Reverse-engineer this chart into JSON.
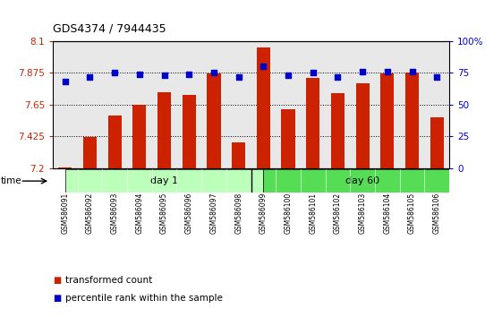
{
  "title": "GDS4374 / 7944435",
  "samples": [
    "GSM586091",
    "GSM586092",
    "GSM586093",
    "GSM586094",
    "GSM586095",
    "GSM586096",
    "GSM586097",
    "GSM586098",
    "GSM586099",
    "GSM586100",
    "GSM586101",
    "GSM586102",
    "GSM586103",
    "GSM586104",
    "GSM586105",
    "GSM586106"
  ],
  "bar_values": [
    7.205,
    7.42,
    7.575,
    7.65,
    7.735,
    7.72,
    7.87,
    7.38,
    8.055,
    7.62,
    7.84,
    7.73,
    7.8,
    7.87,
    7.875,
    7.56
  ],
  "dot_values": [
    68,
    72,
    75,
    74,
    73,
    74,
    75,
    72,
    80,
    73,
    75,
    72,
    76,
    76,
    76,
    72
  ],
  "day1_count": 8,
  "day60_count": 8,
  "ymin": 7.2,
  "ymax": 8.1,
  "y2min": 0,
  "y2max": 100,
  "yticks": [
    7.2,
    7.425,
    7.65,
    7.875,
    8.1
  ],
  "y2ticks": [
    0,
    25,
    50,
    75,
    100
  ],
  "bar_color": "#cc2200",
  "dot_color": "#0000cc",
  "day1_color": "#bbffbb",
  "day60_color": "#55dd55",
  "grid_color": "#000000",
  "bg_color": "#e8e8e8",
  "left_tick_color": "#cc2200",
  "right_tick_color": "#0000cc",
  "legend_red": "transformed count",
  "legend_blue": "percentile rank within the sample"
}
